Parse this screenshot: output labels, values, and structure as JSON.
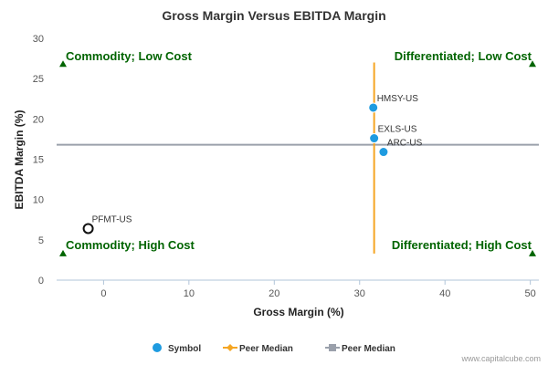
{
  "chart_data": {
    "type": "scatter",
    "title": "Gross Margin Versus EBITDA Margin",
    "xlabel": "Gross Margin (%)",
    "ylabel": "EBITDA Margin (%)",
    "xlim": [
      -5.5,
      51
    ],
    "ylim": [
      0,
      30
    ],
    "x_ticks": [
      0,
      10,
      20,
      30,
      40,
      50
    ],
    "y_ticks": [
      0,
      5,
      10,
      15,
      20,
      25,
      30
    ],
    "grid": false,
    "points": [
      {
        "label": "HMSY-US",
        "x": 31.6,
        "y": 21.4,
        "style": "filled"
      },
      {
        "label": "EXLS-US",
        "x": 31.7,
        "y": 17.6,
        "style": "filled"
      },
      {
        "label": "ARC-US",
        "x": 32.8,
        "y": 15.9,
        "style": "filled"
      },
      {
        "label": "PFMT-US",
        "x": -1.8,
        "y": 6.4,
        "style": "open"
      }
    ],
    "peer_median_x": 31.7,
    "peer_median_y": 16.8,
    "quadrant_labels": [
      {
        "text": "Commodity; Low Cost",
        "corner": "top-left"
      },
      {
        "text": "Differentiated; Low Cost",
        "corner": "top-right"
      },
      {
        "text": "Commodity; High Cost",
        "corner": "bottom-left"
      },
      {
        "text": "Differentiated; High Cost",
        "corner": "bottom-right"
      }
    ],
    "legend": [
      {
        "name": "Symbol",
        "kind": "dot"
      },
      {
        "name": "Peer Median",
        "kind": "orange-line"
      },
      {
        "name": "Peer Median",
        "kind": "gray-line"
      }
    ],
    "legend_position": "bottom",
    "watermark": "www.capitalcube.com",
    "colors": {
      "symbol": "#1e9be0",
      "peer_median_x": "#f5a623",
      "peer_median_y": "#9aa0ab",
      "quadrant_text": "#006400",
      "marker": "#006400",
      "axis": "#b0c4d8",
      "text": "#333333",
      "tick": "#555555"
    }
  }
}
